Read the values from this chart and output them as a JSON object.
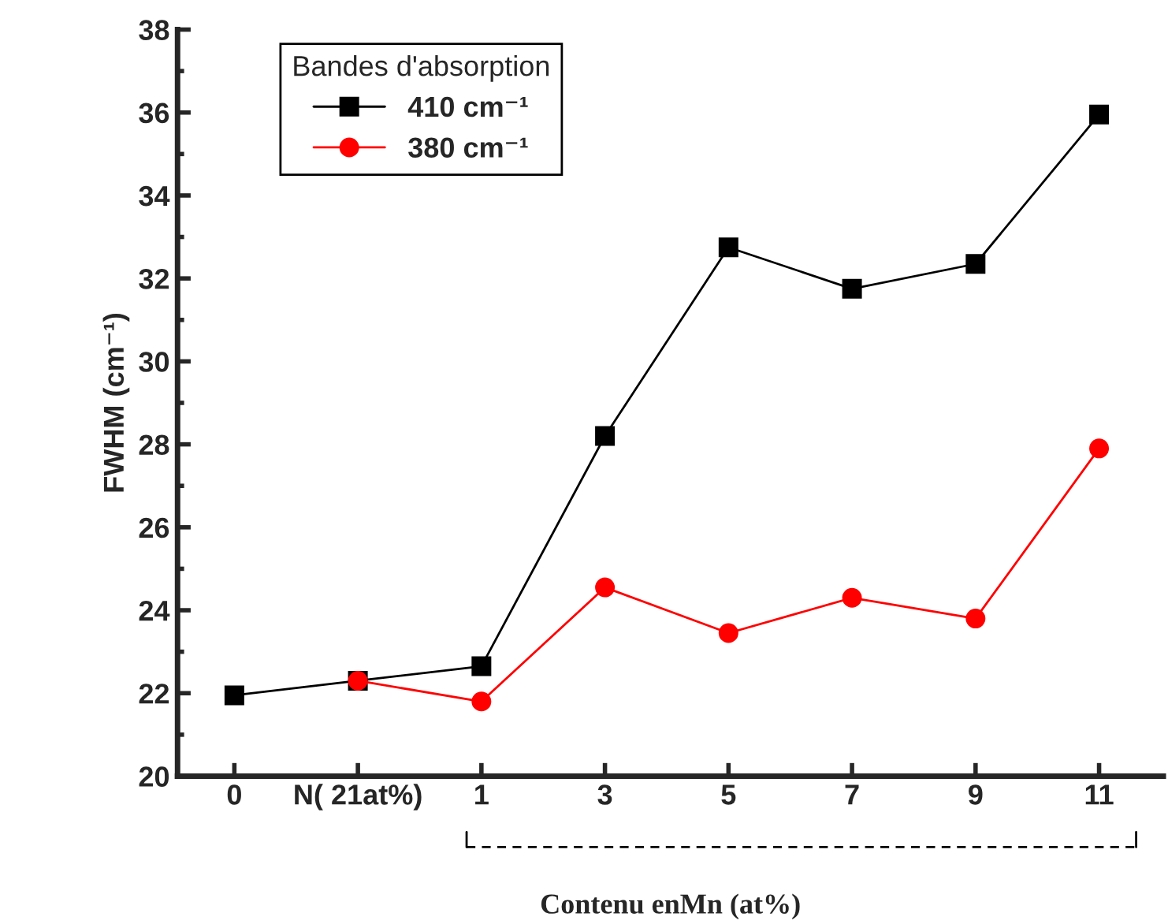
{
  "chart_data": {
    "type": "line",
    "xlabel": "Contenu enMn (at%)",
    "ylabel": "FWHM (cm⁻¹)",
    "legend_title": "Bandes d'absorption",
    "categories": [
      "0",
      "N( 21at%)",
      "1",
      "3",
      "5",
      "7",
      "9",
      "11"
    ],
    "series": [
      {
        "name": "410 cm⁻¹",
        "color": "#000000",
        "marker": "square",
        "values": [
          21.95,
          22.3,
          22.65,
          28.2,
          32.75,
          31.75,
          32.35,
          35.95
        ]
      },
      {
        "name": "380 cm⁻¹",
        "color": "#ff0000",
        "marker": "circle",
        "values": [
          null,
          22.3,
          21.8,
          24.55,
          23.45,
          24.3,
          23.8,
          27.9
        ]
      }
    ],
    "ylim": [
      20,
      38
    ],
    "yticks": [
      20,
      22,
      24,
      26,
      28,
      30,
      32,
      34,
      36,
      38
    ],
    "grid": false,
    "legend": "top left",
    "line_style": "solid"
  }
}
